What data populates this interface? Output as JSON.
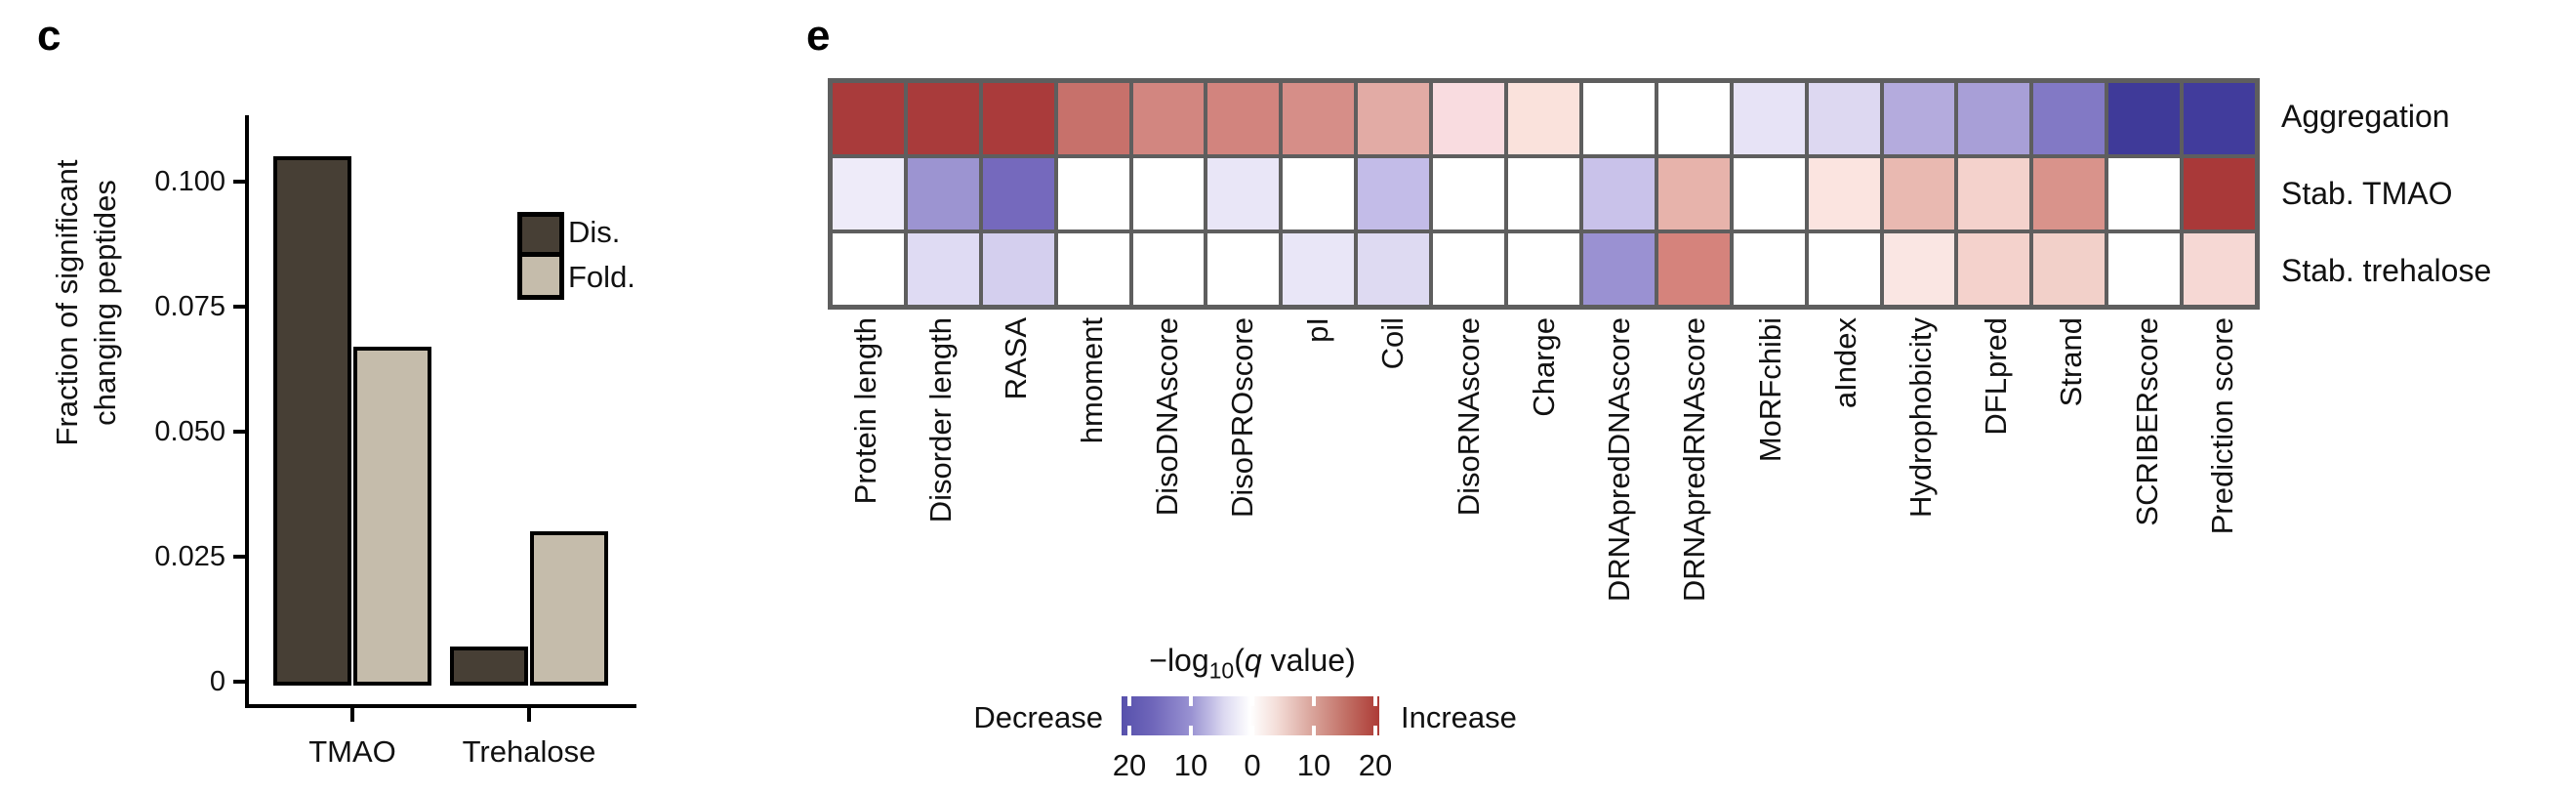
{
  "panel_c": {
    "label": "c",
    "y_axis_title_line1": "Fraction of significant",
    "y_axis_title_line2": "changing peptides",
    "legend": [
      {
        "label": "Dis.",
        "color": "#473f35"
      },
      {
        "label": "Fold.",
        "color": "#c5bcab"
      }
    ]
  },
  "panel_e": {
    "label": "e",
    "legend": {
      "title_full": "−log10(q value)",
      "title_prefix": "−log",
      "title_sub": "10",
      "title_open": "(",
      "title_q": "q",
      "title_rest": " value)",
      "left_label": "Decrease",
      "right_label": "Increase",
      "tick_labels": [
        "20",
        "10",
        "0",
        "10",
        "20"
      ],
      "gradient_left_color": "#5751ac",
      "gradient_mid_color": "#ffffff",
      "gradient_right_color": "#ad3b36"
    }
  },
  "chart_data": [
    {
      "type": "bar",
      "title": "",
      "categories": [
        "TMAO",
        "Trehalose"
      ],
      "series": [
        {
          "name": "Dis.",
          "color": "#473f35",
          "values": [
            0.105,
            0.007
          ]
        },
        {
          "name": "Fold.",
          "color": "#c5bcab",
          "values": [
            0.067,
            0.03
          ]
        }
      ],
      "xlabel": "",
      "ylabel": "Fraction of significant changing peptides",
      "ylim": [
        0,
        0.113
      ],
      "y_ticks": [
        0,
        0.025,
        0.05,
        0.075,
        0.1
      ],
      "y_tick_labels": [
        "0",
        "0.025",
        "0.050",
        "0.075",
        "0.100"
      ],
      "grid": false,
      "legend_position": "upper right"
    },
    {
      "type": "heatmap",
      "columns": [
        "Protein length",
        "Disorder length",
        "RASA",
        "hmoment",
        "DisoDNAscore",
        "DisoPROscore",
        "pI",
        "Coil",
        "DisoRNAscore",
        "Charge",
        "DRNApredDNAscore",
        "DRNApredRNAscore",
        "MoRFchibi",
        "aIndex",
        "Hydrophobicity",
        "DFLpred",
        "Strand",
        "SCRIBERscore",
        "Prediction score"
      ],
      "rows": [
        "Aggregation",
        "Stab. TMAO",
        "Stab. trehalose"
      ],
      "colorbar": {
        "label": "−log10(q value)",
        "range": [
          -22,
          22
        ],
        "ticks": [
          -20,
          -10,
          0,
          10,
          20
        ],
        "negative_direction": "Decrease",
        "positive_direction": "Increase"
      },
      "cell_colors": [
        [
          "#a93b3b",
          "#a93b3b",
          "#aa3b3b",
          "#c7716b",
          "#d28680",
          "#d2847e",
          "#d68e88",
          "#e2aba5",
          "#f9dce0",
          "#fae2dc",
          "#ffffff",
          "#ffffff",
          "#e7e3f6",
          "#ddd8f1",
          "#b4abdd",
          "#a89fd7",
          "#8279c5",
          "#3f3a99",
          "#413c9c"
        ],
        [
          "#eeebf9",
          "#9c94d1",
          "#7569bd",
          "#ffffff",
          "#ffffff",
          "#e9e6f7",
          "#ffffff",
          "#c3bce8",
          "#ffffff",
          "#ffffff",
          "#c9c2ea",
          "#e7b3ab",
          "#ffffff",
          "#fbe4e0",
          "#e9b9b1",
          "#f4d2cc",
          "#d9938b",
          "#ffffff",
          "#a93939"
        ],
        [
          "#ffffff",
          "#dfdbf3",
          "#d4cfee",
          "#ffffff",
          "#ffffff",
          "#ffffff",
          "#e9e6f7",
          "#dedaf2",
          "#ffffff",
          "#ffffff",
          "#9a91d2",
          "#d5837c",
          "#ffffff",
          "#ffffff",
          "#fae6e3",
          "#f4d2cc",
          "#f2d0c9",
          "#ffffff",
          "#f6d8d4"
        ]
      ],
      "values_approx_neg_log10_q": [
        [
          21,
          21,
          21,
          13,
          11,
          11,
          10,
          7,
          2.5,
          2,
          0,
          0,
          -2,
          -3,
          -8,
          -9.5,
          -13,
          -22,
          -22
        ],
        [
          -1.5,
          -10.5,
          -15,
          0,
          0,
          -2,
          0,
          -6,
          0,
          0,
          -5.5,
          7.5,
          0,
          2.5,
          6.5,
          4,
          9.5,
          0,
          21
        ],
        [
          0,
          -3,
          -4,
          0,
          0,
          0,
          -2,
          -3,
          0,
          0,
          -11,
          11,
          0,
          0,
          2,
          4,
          4,
          0,
          3.5
        ]
      ]
    }
  ]
}
